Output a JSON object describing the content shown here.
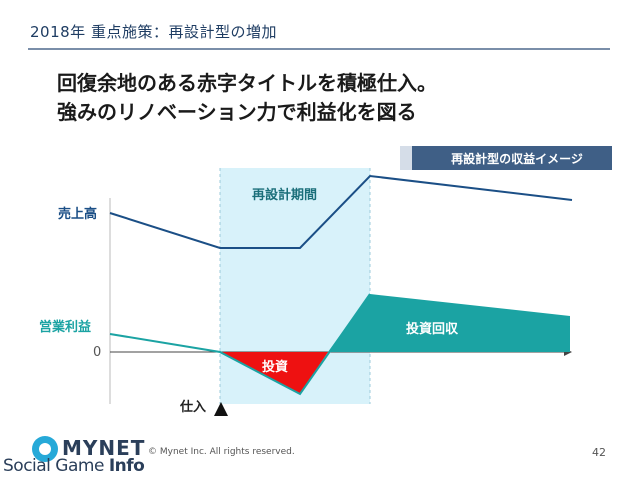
{
  "header": {
    "title": "2018年 重点施策：再設計型の増加"
  },
  "headline": {
    "line1": "回復余地のある赤字タイトルを積極仕入。",
    "line2": "強みのリノベーション力で利益化を図る"
  },
  "diagram": {
    "badge": "再設計型の収益イメージ",
    "period_label": "再設計期間",
    "sales_label": "売上高",
    "profit_label": "営業利益",
    "zero_label": "0",
    "purchase_label": "仕入",
    "investment_label": "投資",
    "recovery_label": "投資回収",
    "colors": {
      "sales": "#1b4f86",
      "profit": "#1ba3a3",
      "investment": "#ee1111",
      "period": "#d8f2fa"
    }
  },
  "footer": {
    "copyright": "© Mynet Inc. All rights reserved.",
    "page": "42",
    "logo_name": "MYNET",
    "logo_sub_light": "Social Game",
    "logo_sub_bold": "Info"
  }
}
